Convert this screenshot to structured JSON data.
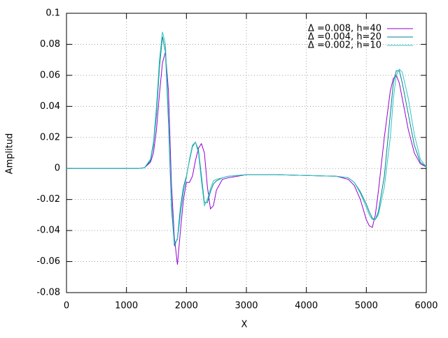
{
  "chart_data": {
    "type": "line",
    "xlabel": "X",
    "ylabel": "Amplitud",
    "x": [
      0,
      1000,
      1200,
      1300,
      1400,
      1450,
      1500,
      1550,
      1600,
      1650,
      1700,
      1750,
      1800,
      1850,
      1900,
      1950,
      2000,
      2050,
      2100,
      2150,
      2200,
      2250,
      2300,
      2350,
      2400,
      2450,
      2500,
      2600,
      2700,
      3000,
      3500,
      4000,
      4500,
      4700,
      4800,
      4900,
      5000,
      5050,
      5100,
      5150,
      5200,
      5300,
      5400,
      5450,
      5500,
      5550,
      5600,
      5700,
      5800,
      5900,
      6000
    ],
    "series": [
      {
        "name": "Δ =0.008, h=40",
        "color": "#9400d3",
        "values": [
          0,
          0,
          0,
          0.0005,
          0.004,
          0.01,
          0.025,
          0.048,
          0.068,
          0.075,
          0.05,
          -0.01,
          -0.045,
          -0.062,
          -0.04,
          -0.02,
          -0.009,
          -0.009,
          -0.005,
          0.005,
          0.013,
          0.016,
          0.01,
          -0.012,
          -0.026,
          -0.024,
          -0.014,
          -0.007,
          -0.006,
          -0.004,
          -0.004,
          -0.0045,
          -0.005,
          -0.007,
          -0.011,
          -0.02,
          -0.033,
          -0.037,
          -0.038,
          -0.03,
          -0.015,
          0.02,
          0.05,
          0.058,
          0.06,
          0.055,
          0.045,
          0.025,
          0.01,
          0.003,
          0.001
        ]
      },
      {
        "name": "Δ =0.004, h=20",
        "color": "#00808f",
        "values": [
          0,
          0,
          0,
          0.0005,
          0.005,
          0.015,
          0.035,
          0.065,
          0.085,
          0.075,
          0.03,
          -0.025,
          -0.05,
          -0.045,
          -0.025,
          -0.012,
          -0.005,
          0.005,
          0.014,
          0.017,
          0.012,
          -0.005,
          -0.022,
          -0.022,
          -0.015,
          -0.01,
          -0.008,
          -0.006,
          -0.005,
          -0.004,
          -0.004,
          -0.0045,
          -0.005,
          -0.006,
          -0.009,
          -0.015,
          -0.023,
          -0.028,
          -0.032,
          -0.033,
          -0.028,
          -0.005,
          0.035,
          0.055,
          0.063,
          0.063,
          0.055,
          0.035,
          0.015,
          0.004,
          0.001
        ]
      },
      {
        "name": "Δ =0.002, h=10",
        "color": "#2ec4c0",
        "values": [
          0,
          0,
          0,
          0.0005,
          0.006,
          0.017,
          0.04,
          0.07,
          0.088,
          0.08,
          0.035,
          -0.02,
          -0.048,
          -0.046,
          -0.03,
          -0.015,
          -0.006,
          0.006,
          0.015,
          0.017,
          0.01,
          -0.008,
          -0.024,
          -0.02,
          -0.013,
          -0.008,
          -0.007,
          -0.006,
          -0.005,
          -0.004,
          -0.004,
          -0.0045,
          -0.005,
          -0.006,
          -0.009,
          -0.016,
          -0.025,
          -0.03,
          -0.033,
          -0.033,
          -0.03,
          -0.012,
          0.02,
          0.045,
          0.06,
          0.064,
          0.062,
          0.045,
          0.022,
          0.006,
          0.001
        ]
      }
    ],
    "xlim": [
      0,
      6000
    ],
    "xticks": [
      0,
      1000,
      2000,
      3000,
      4000,
      5000,
      6000
    ],
    "ylim": [
      -0.08,
      0.1
    ],
    "yticks": [
      -0.08,
      -0.06,
      -0.04,
      -0.02,
      0,
      0.02,
      0.04,
      0.06,
      0.08,
      0.1
    ],
    "grid": true,
    "legend": "top right"
  }
}
